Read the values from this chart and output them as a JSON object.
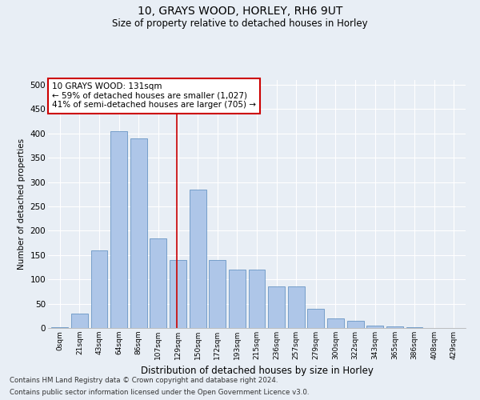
{
  "title1": "10, GRAYS WOOD, HORLEY, RH6 9UT",
  "title2": "Size of property relative to detached houses in Horley",
  "xlabel": "Distribution of detached houses by size in Horley",
  "ylabel": "Number of detached properties",
  "categories": [
    "0sqm",
    "21sqm",
    "43sqm",
    "64sqm",
    "86sqm",
    "107sqm",
    "129sqm",
    "150sqm",
    "172sqm",
    "193sqm",
    "215sqm",
    "236sqm",
    "257sqm",
    "279sqm",
    "300sqm",
    "322sqm",
    "343sqm",
    "365sqm",
    "386sqm",
    "408sqm",
    "429sqm"
  ],
  "values": [
    2,
    30,
    160,
    405,
    390,
    185,
    140,
    285,
    140,
    120,
    120,
    85,
    85,
    40,
    20,
    15,
    5,
    3,
    2,
    0,
    0
  ],
  "bar_color": "#aec6e8",
  "bar_edge_color": "#5588bb",
  "background_color": "#e8eef5",
  "grid_color": "#ffffff",
  "vline_x_idx": 6,
  "vline_color": "#cc0000",
  "annotation_text": "10 GRAYS WOOD: 131sqm\n← 59% of detached houses are smaller (1,027)\n41% of semi-detached houses are larger (705) →",
  "annotation_box_color": "#ffffff",
  "annotation_box_edge": "#cc0000",
  "footnote1": "Contains HM Land Registry data © Crown copyright and database right 2024.",
  "footnote2": "Contains public sector information licensed under the Open Government Licence v3.0.",
  "ylim": [
    0,
    510
  ],
  "yticks": [
    0,
    50,
    100,
    150,
    200,
    250,
    300,
    350,
    400,
    450,
    500
  ]
}
